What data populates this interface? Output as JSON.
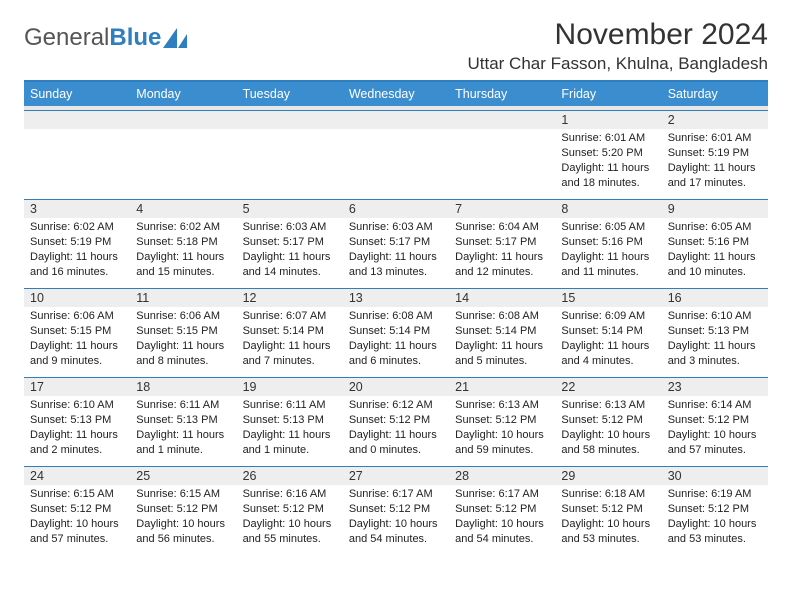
{
  "logo": {
    "text1": "General",
    "text2": "Blue"
  },
  "title": "November 2024",
  "location": "Uttar Char Fasson, Khulna, Bangladesh",
  "colors": {
    "header_bar": "#3a8dce",
    "border": "#2f7fbf",
    "daynum_bg": "#eeeeee",
    "text": "#222222"
  },
  "weekdays": [
    "Sunday",
    "Monday",
    "Tuesday",
    "Wednesday",
    "Thursday",
    "Friday",
    "Saturday"
  ],
  "weeks": [
    [
      {
        "n": "",
        "sr": "",
        "ss": "",
        "dl": ""
      },
      {
        "n": "",
        "sr": "",
        "ss": "",
        "dl": ""
      },
      {
        "n": "",
        "sr": "",
        "ss": "",
        "dl": ""
      },
      {
        "n": "",
        "sr": "",
        "ss": "",
        "dl": ""
      },
      {
        "n": "",
        "sr": "",
        "ss": "",
        "dl": ""
      },
      {
        "n": "1",
        "sr": "Sunrise: 6:01 AM",
        "ss": "Sunset: 5:20 PM",
        "dl": "Daylight: 11 hours and 18 minutes."
      },
      {
        "n": "2",
        "sr": "Sunrise: 6:01 AM",
        "ss": "Sunset: 5:19 PM",
        "dl": "Daylight: 11 hours and 17 minutes."
      }
    ],
    [
      {
        "n": "3",
        "sr": "Sunrise: 6:02 AM",
        "ss": "Sunset: 5:19 PM",
        "dl": "Daylight: 11 hours and 16 minutes."
      },
      {
        "n": "4",
        "sr": "Sunrise: 6:02 AM",
        "ss": "Sunset: 5:18 PM",
        "dl": "Daylight: 11 hours and 15 minutes."
      },
      {
        "n": "5",
        "sr": "Sunrise: 6:03 AM",
        "ss": "Sunset: 5:17 PM",
        "dl": "Daylight: 11 hours and 14 minutes."
      },
      {
        "n": "6",
        "sr": "Sunrise: 6:03 AM",
        "ss": "Sunset: 5:17 PM",
        "dl": "Daylight: 11 hours and 13 minutes."
      },
      {
        "n": "7",
        "sr": "Sunrise: 6:04 AM",
        "ss": "Sunset: 5:17 PM",
        "dl": "Daylight: 11 hours and 12 minutes."
      },
      {
        "n": "8",
        "sr": "Sunrise: 6:05 AM",
        "ss": "Sunset: 5:16 PM",
        "dl": "Daylight: 11 hours and 11 minutes."
      },
      {
        "n": "9",
        "sr": "Sunrise: 6:05 AM",
        "ss": "Sunset: 5:16 PM",
        "dl": "Daylight: 11 hours and 10 minutes."
      }
    ],
    [
      {
        "n": "10",
        "sr": "Sunrise: 6:06 AM",
        "ss": "Sunset: 5:15 PM",
        "dl": "Daylight: 11 hours and 9 minutes."
      },
      {
        "n": "11",
        "sr": "Sunrise: 6:06 AM",
        "ss": "Sunset: 5:15 PM",
        "dl": "Daylight: 11 hours and 8 minutes."
      },
      {
        "n": "12",
        "sr": "Sunrise: 6:07 AM",
        "ss": "Sunset: 5:14 PM",
        "dl": "Daylight: 11 hours and 7 minutes."
      },
      {
        "n": "13",
        "sr": "Sunrise: 6:08 AM",
        "ss": "Sunset: 5:14 PM",
        "dl": "Daylight: 11 hours and 6 minutes."
      },
      {
        "n": "14",
        "sr": "Sunrise: 6:08 AM",
        "ss": "Sunset: 5:14 PM",
        "dl": "Daylight: 11 hours and 5 minutes."
      },
      {
        "n": "15",
        "sr": "Sunrise: 6:09 AM",
        "ss": "Sunset: 5:14 PM",
        "dl": "Daylight: 11 hours and 4 minutes."
      },
      {
        "n": "16",
        "sr": "Sunrise: 6:10 AM",
        "ss": "Sunset: 5:13 PM",
        "dl": "Daylight: 11 hours and 3 minutes."
      }
    ],
    [
      {
        "n": "17",
        "sr": "Sunrise: 6:10 AM",
        "ss": "Sunset: 5:13 PM",
        "dl": "Daylight: 11 hours and 2 minutes."
      },
      {
        "n": "18",
        "sr": "Sunrise: 6:11 AM",
        "ss": "Sunset: 5:13 PM",
        "dl": "Daylight: 11 hours and 1 minute."
      },
      {
        "n": "19",
        "sr": "Sunrise: 6:11 AM",
        "ss": "Sunset: 5:13 PM",
        "dl": "Daylight: 11 hours and 1 minute."
      },
      {
        "n": "20",
        "sr": "Sunrise: 6:12 AM",
        "ss": "Sunset: 5:12 PM",
        "dl": "Daylight: 11 hours and 0 minutes."
      },
      {
        "n": "21",
        "sr": "Sunrise: 6:13 AM",
        "ss": "Sunset: 5:12 PM",
        "dl": "Daylight: 10 hours and 59 minutes."
      },
      {
        "n": "22",
        "sr": "Sunrise: 6:13 AM",
        "ss": "Sunset: 5:12 PM",
        "dl": "Daylight: 10 hours and 58 minutes."
      },
      {
        "n": "23",
        "sr": "Sunrise: 6:14 AM",
        "ss": "Sunset: 5:12 PM",
        "dl": "Daylight: 10 hours and 57 minutes."
      }
    ],
    [
      {
        "n": "24",
        "sr": "Sunrise: 6:15 AM",
        "ss": "Sunset: 5:12 PM",
        "dl": "Daylight: 10 hours and 57 minutes."
      },
      {
        "n": "25",
        "sr": "Sunrise: 6:15 AM",
        "ss": "Sunset: 5:12 PM",
        "dl": "Daylight: 10 hours and 56 minutes."
      },
      {
        "n": "26",
        "sr": "Sunrise: 6:16 AM",
        "ss": "Sunset: 5:12 PM",
        "dl": "Daylight: 10 hours and 55 minutes."
      },
      {
        "n": "27",
        "sr": "Sunrise: 6:17 AM",
        "ss": "Sunset: 5:12 PM",
        "dl": "Daylight: 10 hours and 54 minutes."
      },
      {
        "n": "28",
        "sr": "Sunrise: 6:17 AM",
        "ss": "Sunset: 5:12 PM",
        "dl": "Daylight: 10 hours and 54 minutes."
      },
      {
        "n": "29",
        "sr": "Sunrise: 6:18 AM",
        "ss": "Sunset: 5:12 PM",
        "dl": "Daylight: 10 hours and 53 minutes."
      },
      {
        "n": "30",
        "sr": "Sunrise: 6:19 AM",
        "ss": "Sunset: 5:12 PM",
        "dl": "Daylight: 10 hours and 53 minutes."
      }
    ]
  ]
}
